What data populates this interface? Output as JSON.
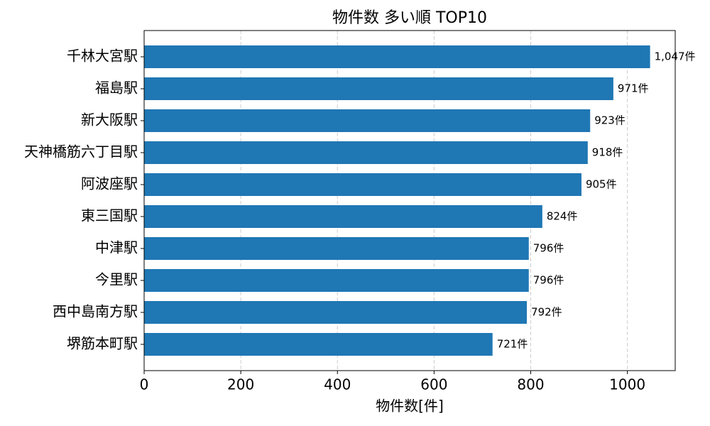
{
  "chart_data": {
    "type": "barh",
    "title": "物件数 多い順 TOP10",
    "xlabel": "物件数[件]",
    "categories": [
      "千林大宮駅",
      "福島駅",
      "新大阪駅",
      "天神橋筋六丁目駅",
      "阿波座駅",
      "東三国駅",
      "中津駅",
      "今里駅",
      "西中島南方駅",
      "堺筋本町駅"
    ],
    "values": [
      1047,
      971,
      923,
      918,
      905,
      824,
      796,
      796,
      792,
      721
    ],
    "value_labels": [
      "1,047件",
      "971件",
      "923件",
      "918件",
      "905件",
      "824件",
      "796件",
      "796件",
      "792件",
      "721件"
    ],
    "color": "#1f77b4",
    "xlim": [
      0,
      1099
    ],
    "xticks": [
      0,
      200,
      400,
      600,
      800,
      1000
    ],
    "grid": true
  }
}
